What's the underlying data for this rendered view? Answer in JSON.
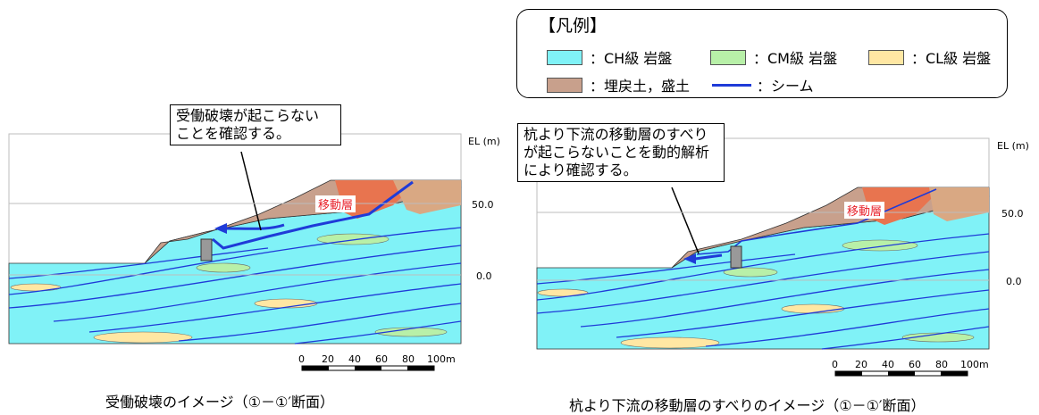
{
  "legend": {
    "title": "【凡例】",
    "items": [
      {
        "label": "：CH級 岩盤",
        "color": "#80f2f7"
      },
      {
        "label": "：CM級 岩盤",
        "color": "#b8f0a8"
      },
      {
        "label": "：CL級 岩盤",
        "color": "#ffe7a3"
      },
      {
        "label": "：埋戻土，盛土",
        "color": "#c8a08c"
      },
      {
        "label": "：シーム",
        "color": "#1f3bd8"
      }
    ]
  },
  "left": {
    "callout": [
      "受働破壊が起こらない",
      "ことを確認する。"
    ],
    "layer_label": "移動層",
    "axis_title": "EL (m)",
    "ticks": [
      "50.0",
      "0.0"
    ],
    "scale": [
      "0",
      "20",
      "40",
      "60",
      "80",
      "100m"
    ],
    "caption": "受働破壊のイメージ（①－①′断面）"
  },
  "right": {
    "callout": [
      "杭より下流の移動層のすべり",
      "が起こらないことを動的解析",
      "により確認する。"
    ],
    "layer_label": "移動層",
    "axis_title": "EL (m)",
    "ticks": [
      "50.0",
      "0.0"
    ],
    "scale": [
      "0",
      "20",
      "40",
      "60",
      "80",
      "100m"
    ],
    "caption": "杭より下流の移動層のすべりのイメージ（①－①′断面）"
  }
}
